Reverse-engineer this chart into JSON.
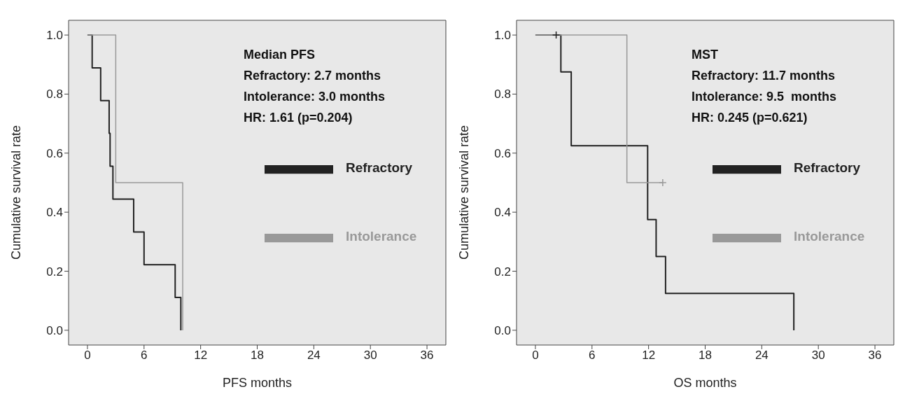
{
  "chart_data": [
    {
      "type": "step",
      "xlabel": "PFS months",
      "ylabel": "Cumulative survival rate",
      "xlim": [
        -2,
        38
      ],
      "xticks": [
        0,
        6,
        12,
        18,
        24,
        30,
        36
      ],
      "ylim": [
        -0.05,
        1.05
      ],
      "yticks": [
        {
          "value": 0,
          "label": "0.0"
        },
        {
          "value": 0.2,
          "label": "0.2"
        },
        {
          "value": 0.4,
          "label": "0.4"
        },
        {
          "value": 0.6,
          "label": "0.6"
        },
        {
          "value": 0.8,
          "label": "0.8"
        },
        {
          "value": 1,
          "label": "1.0"
        }
      ],
      "legend": "right",
      "marker": "none",
      "annotations": [
        "Median PFS",
        "Refractory: 2.7 months",
        "Intolerance: 3.0 months",
        "HR: 1.61 (p=0.204)"
      ],
      "series": [
        {
          "name": "Refractory",
          "color": "#222222",
          "x": [
            0,
            0.5,
            1.4,
            2.3,
            2.4,
            2.7,
            4.9,
            6.0,
            9.3,
            9.9
          ],
          "values": [
            1,
            0.889,
            0.778,
            0.667,
            0.556,
            0.444,
            0.333,
            0.222,
            0.111,
            0
          ]
        },
        {
          "name": "Intolerance",
          "color": "#999999",
          "x": [
            0,
            3.0,
            10.1
          ],
          "values": [
            1,
            0.5,
            0
          ]
        }
      ]
    },
    {
      "type": "step",
      "xlabel": "OS months",
      "ylabel": "Cumulative survival rate",
      "xlim": [
        -2,
        38
      ],
      "xticks": [
        0,
        6,
        12,
        18,
        24,
        30,
        36
      ],
      "ylim": [
        -0.05,
        1.05
      ],
      "yticks": [
        {
          "value": 0,
          "label": "0.0"
        },
        {
          "value": 0.2,
          "label": "0.2"
        },
        {
          "value": 0.4,
          "label": "0.4"
        },
        {
          "value": 0.6,
          "label": "0.6"
        },
        {
          "value": 0.8,
          "label": "0.8"
        },
        {
          "value": 1,
          "label": "1.0"
        }
      ],
      "legend": "right",
      "marker": "none",
      "annotations": [
        "MST",
        "Refractory: 11.7 months",
        "Intolerance: 9.5  months",
        "HR: 0.245 (p=0.621)"
      ],
      "series": [
        {
          "name": "Refractory",
          "color": "#222222",
          "x": [
            0,
            2.7,
            3.8,
            11.9,
            12.8,
            13.8,
            27.4
          ],
          "values": [
            1,
            0.875,
            0.625,
            0.375,
            0.25,
            0.125,
            0
          ]
        },
        {
          "name": "Intolerance",
          "color": "#999999",
          "x": [
            0,
            9.7,
            13.5
          ],
          "values": [
            1,
            0.5,
            0.5
          ]
        },
        {
          "type": "scatter",
          "marker": "cross",
          "color": "#222222",
          "x": [
            2.2
          ],
          "values": [
            1
          ]
        },
        {
          "type": "scatter",
          "marker": "cross",
          "color": "#999999",
          "x": [
            13.5
          ],
          "values": [
            0.5
          ]
        }
      ]
    }
  ]
}
